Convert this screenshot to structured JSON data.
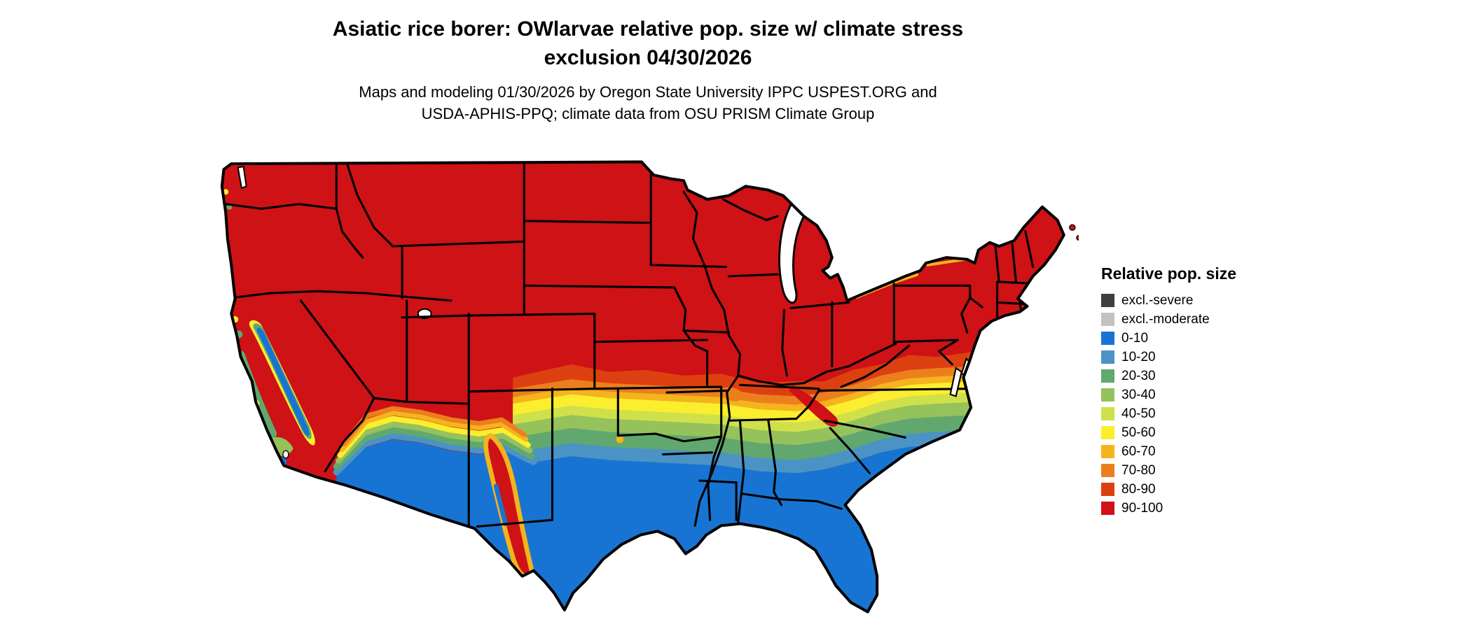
{
  "header": {
    "title_line1": "Asiatic rice borer: OWlarvae relative pop. size w/ climate stress",
    "title_line2": "exclusion 04/30/2026",
    "subtitle_line1": "Maps and modeling 01/30/2026 by Oregon State University IPPC USPEST.ORG and",
    "subtitle_line2": "USDA-APHIS-PPQ; climate data from OSU PRISM Climate Group"
  },
  "legend": {
    "title": "Relative pop. size",
    "items": [
      {
        "label": "excl.-severe",
        "color": "#3f3f3f"
      },
      {
        "label": "excl.-moderate",
        "color": "#c2c2c2"
      },
      {
        "label": "0-10",
        "color": "#1874d2"
      },
      {
        "label": "10-20",
        "color": "#4b93c4"
      },
      {
        "label": "20-30",
        "color": "#60a86e"
      },
      {
        "label": "30-40",
        "color": "#95c25b"
      },
      {
        "label": "40-50",
        "color": "#cfe04a"
      },
      {
        "label": "50-60",
        "color": "#fbee2e"
      },
      {
        "label": "60-70",
        "color": "#f5b31d"
      },
      {
        "label": "70-80",
        "color": "#ec7f1d"
      },
      {
        "label": "80-90",
        "color": "#dd4010"
      },
      {
        "label": "90-100",
        "color": "#ce1216"
      }
    ]
  },
  "palette": {
    "excl_severe": "#3f3f3f",
    "excl_moderate": "#c2c2c2",
    "p0_10": "#1874d2",
    "p10_20": "#4b93c4",
    "p20_30": "#60a86e",
    "p30_40": "#95c25b",
    "p40_50": "#cfe04a",
    "p50_60": "#fbee2e",
    "p60_70": "#f5b31d",
    "p70_80": "#ec7f1d",
    "p80_90": "#dd4010",
    "p90_100": "#ce1216",
    "water": "#ffffff",
    "border": "#000000"
  },
  "chart_data": {
    "type": "choropleth_map",
    "region": "Continental United States",
    "title": "Asiatic rice borer: OWlarvae relative pop. size w/ climate stress exclusion 04/30/2026",
    "legend_title": "Relative pop. size",
    "classes": [
      "excl.-severe",
      "excl.-moderate",
      "0-10",
      "10-20",
      "20-30",
      "30-40",
      "40-50",
      "50-60",
      "60-70",
      "70-80",
      "80-90",
      "90-100"
    ],
    "class_colors": [
      "#3f3f3f",
      "#c2c2c2",
      "#1874d2",
      "#4b93c4",
      "#60a86e",
      "#95c25b",
      "#cfe04a",
      "#fbee2e",
      "#f5b31d",
      "#ec7f1d",
      "#dd4010",
      "#ce1216"
    ],
    "pattern": "90-100 (red) covers the northern and central US; a west-to-east transition band (80-90 down to 10-20) crosses eastern New Mexico, Oklahoma, Arkansas, Tennessee and Virginia; 0-10 (blue) covers southern Texas, the Gulf Coast, Florida, the Southeast coastal plain, southern Arizona/New Mexico and California's Central Valley."
  }
}
